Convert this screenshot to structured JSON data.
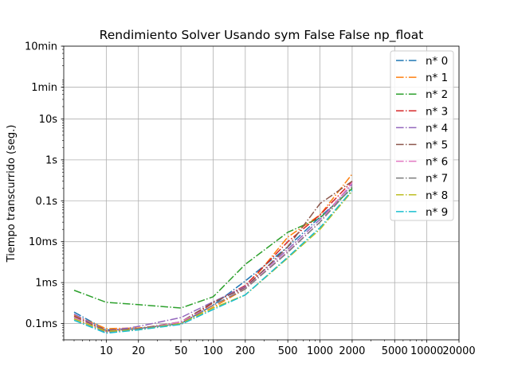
{
  "chart_data": {
    "type": "line",
    "title": "Rendimiento  Solver Usando sym False False np_float",
    "xlabel": "",
    "ylabel": "Tiempo transcurrido (seg.)",
    "x_scale": "log",
    "y_scale": "log",
    "xlim": [
      4,
      20000
    ],
    "ylim": [
      4e-05,
      600
    ],
    "grid": true,
    "legend_position": "top-right",
    "line_style": "dash-dot",
    "x_ticks": [
      {
        "value": 10,
        "label": "10"
      },
      {
        "value": 20,
        "label": "20"
      },
      {
        "value": 50,
        "label": "50"
      },
      {
        "value": 100,
        "label": "100"
      },
      {
        "value": 200,
        "label": "200"
      },
      {
        "value": 500,
        "label": "500"
      },
      {
        "value": 1000,
        "label": "1000"
      },
      {
        "value": 2000,
        "label": "2000"
      },
      {
        "value": 5000,
        "label": "5000"
      },
      {
        "value": 10000,
        "label": "10000"
      },
      {
        "value": 20000,
        "label": "20000"
      }
    ],
    "y_ticks": [
      {
        "value": 0.0001,
        "label": "0.1ms"
      },
      {
        "value": 0.001,
        "label": "1ms"
      },
      {
        "value": 0.01,
        "label": "10ms"
      },
      {
        "value": 0.1,
        "label": "0.1s"
      },
      {
        "value": 1,
        "label": "1s"
      },
      {
        "value": 10,
        "label": "10s"
      },
      {
        "value": 60,
        "label": "1min"
      },
      {
        "value": 600,
        "label": "10min"
      }
    ],
    "x": [
      5,
      10,
      20,
      50,
      100,
      200,
      500,
      1000,
      2000
    ],
    "series": [
      {
        "name": "n* 0",
        "color": "#1f77b4",
        "values": [
          0.00019,
          7e-05,
          7.5e-05,
          0.0001,
          0.00028,
          0.0011,
          0.0075,
          0.04,
          0.2
        ]
      },
      {
        "name": "n* 1",
        "color": "#ff7f0e",
        "values": [
          0.00016,
          7.5e-05,
          7.8e-05,
          0.0001,
          0.00025,
          0.0007,
          0.013,
          0.045,
          0.45
        ]
      },
      {
        "name": "n* 2",
        "color": "#2ca02c",
        "values": [
          0.00065,
          0.00033,
          0.00029,
          0.00024,
          0.00045,
          0.0028,
          0.017,
          0.038,
          0.2
        ]
      },
      {
        "name": "n* 3",
        "color": "#d62728",
        "values": [
          0.00015,
          6.8e-05,
          7.5e-05,
          0.0001,
          0.00032,
          0.00085,
          0.01,
          0.045,
          0.3
        ]
      },
      {
        "name": "n* 4",
        "color": "#9467bd",
        "values": [
          0.00017,
          6.5e-05,
          8.5e-05,
          0.00014,
          0.00034,
          0.0008,
          0.0065,
          0.035,
          0.25
        ]
      },
      {
        "name": "n* 5",
        "color": "#8c564b",
        "values": [
          0.00015,
          6.5e-05,
          7.5e-05,
          0.00011,
          0.00033,
          0.00075,
          0.0075,
          0.085,
          0.3
        ]
      },
      {
        "name": "n* 6",
        "color": "#e377c2",
        "values": [
          0.00014,
          6.2e-05,
          7.2e-05,
          0.00011,
          0.00028,
          0.00072,
          0.0058,
          0.03,
          0.28
        ]
      },
      {
        "name": "n* 7",
        "color": "#7f7f7f",
        "values": [
          0.00013,
          6.2e-05,
          7.5e-05,
          0.0001,
          0.00028,
          0.0007,
          0.0055,
          0.03,
          0.22
        ]
      },
      {
        "name": "n* 8",
        "color": "#bcbd22",
        "values": [
          0.00013,
          6.5e-05,
          7e-05,
          0.0001,
          0.00024,
          0.0005,
          0.004,
          0.02,
          0.17
        ]
      },
      {
        "name": "n* 9",
        "color": "#17becf",
        "values": [
          0.00012,
          5.8e-05,
          7e-05,
          9.5e-05,
          0.00022,
          0.0005,
          0.0042,
          0.022,
          0.18
        ]
      }
    ]
  }
}
